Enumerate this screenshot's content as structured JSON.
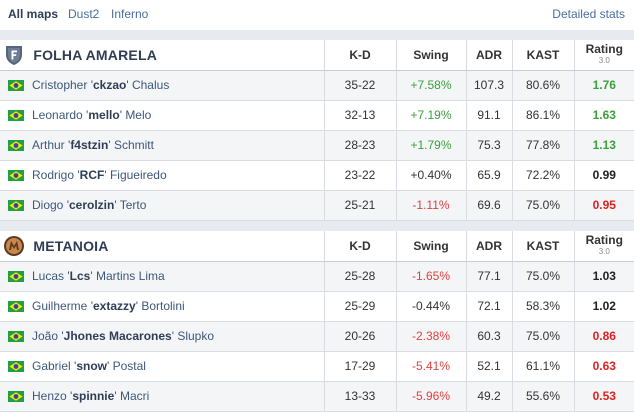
{
  "maps": {
    "items": [
      {
        "label": "All maps",
        "active": true
      },
      {
        "label": "Dust2",
        "active": false
      },
      {
        "label": "Inferno",
        "active": false
      }
    ],
    "detailed_stats": "Detailed stats"
  },
  "columns": {
    "kd": "K-D",
    "swing": "Swing",
    "adr": "ADR",
    "kast": "KAST",
    "rating": "Rating",
    "rating_version": "3.0"
  },
  "teams": [
    {
      "name": "FOLHA AMARELA",
      "logo_icon": "folha-amarela-shield-logo",
      "players": [
        {
          "first": "Cristopher '",
          "nick": "ckzao",
          "last": "' Chalus",
          "kd": "35-22",
          "swing": "+7.58%",
          "adr": "107.3",
          "kast": "80.6%",
          "rating": "1.76"
        },
        {
          "first": "Leonardo '",
          "nick": "mello",
          "last": "' Melo",
          "kd": "32-13",
          "swing": "+7.19%",
          "adr": "91.1",
          "kast": "86.1%",
          "rating": "1.63"
        },
        {
          "first": "Arthur '",
          "nick": "f4stzin",
          "last": "' Schmitt",
          "kd": "28-23",
          "swing": "+1.79%",
          "adr": "75.3",
          "kast": "77.8%",
          "rating": "1.13"
        },
        {
          "first": "Rodrigo '",
          "nick": "RCF",
          "last": "' Figueiredo",
          "kd": "23-22",
          "swing": "+0.40%",
          "adr": "65.9",
          "kast": "72.2%",
          "rating": "0.99"
        },
        {
          "first": "Diogo '",
          "nick": "cerolzin",
          "last": "' Terto",
          "kd": "25-21",
          "swing": "-1.11%",
          "adr": "69.6",
          "kast": "75.0%",
          "rating": "0.95"
        }
      ]
    },
    {
      "name": "METANOIA",
      "logo_icon": "metanoia-logo",
      "players": [
        {
          "first": "Lucas '",
          "nick": "Lcs",
          "last": "' Martins Lima",
          "kd": "25-28",
          "swing": "-1.65%",
          "adr": "77.1",
          "kast": "75.0%",
          "rating": "1.03"
        },
        {
          "first": "Guilherme '",
          "nick": "extazzy",
          "last": "' Bortolini",
          "kd": "25-29",
          "swing": "-0.44%",
          "adr": "72.1",
          "kast": "58.3%",
          "rating": "1.02"
        },
        {
          "first": "João '",
          "nick": "Jhones Macarones",
          "last": "' Slupko",
          "kd": "20-26",
          "swing": "-2.38%",
          "adr": "60.3",
          "kast": "75.0%",
          "rating": "0.86"
        },
        {
          "first": "Gabriel '",
          "nick": "snow",
          "last": "' Postal",
          "kd": "17-29",
          "swing": "-5.41%",
          "adr": "52.1",
          "kast": "61.1%",
          "rating": "0.63"
        },
        {
          "first": "Henzo '",
          "nick": "spinnie",
          "last": "' Macri",
          "kd": "13-33",
          "swing": "-5.96%",
          "adr": "49.2",
          "kast": "55.6%",
          "rating": "0.53"
        }
      ]
    }
  ],
  "colors": {
    "positive": "#3b9f3b",
    "negative": "#e04040",
    "link": "#4a6e9e",
    "band": "#e7eaef"
  }
}
